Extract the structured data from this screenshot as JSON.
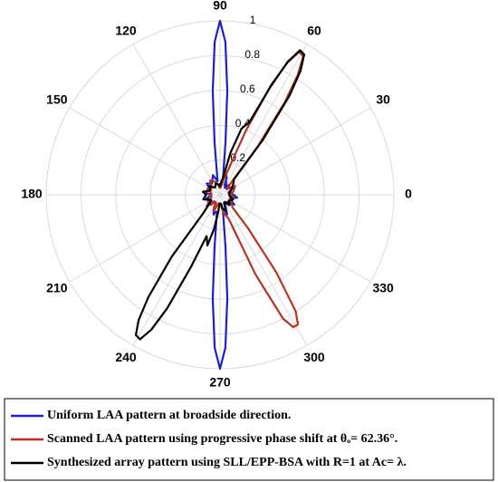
{
  "chart_data": {
    "type": "polar",
    "theta": [
      0,
      15,
      30,
      40,
      48,
      52,
      55,
      57,
      59,
      61,
      63,
      65,
      68,
      72,
      76,
      80,
      84,
      86,
      88,
      90,
      92,
      94,
      96,
      100,
      110,
      125,
      140,
      155,
      170,
      180,
      195,
      210,
      220,
      228,
      232,
      235,
      237,
      239,
      241,
      243,
      245,
      248,
      252,
      256,
      260,
      264,
      266,
      268,
      270,
      272,
      274,
      276,
      280,
      290,
      294,
      297,
      299,
      301,
      303,
      306,
      310,
      315,
      325,
      340,
      350,
      360
    ],
    "series": [
      {
        "name": "Uniform LAA pattern at broadside direction.",
        "color": "#1f1fc8",
        "values": [
          0.08,
          0.05,
          0.1,
          0.06,
          0.08,
          0.05,
          0.06,
          0.05,
          0.07,
          0.06,
          0.08,
          0.06,
          0.1,
          0.12,
          0.1,
          0.1,
          0.3,
          0.6,
          0.88,
          1,
          0.88,
          0.6,
          0.3,
          0.08,
          0.12,
          0.08,
          0.1,
          0.06,
          0.1,
          0.05,
          0.08,
          0.06,
          0.1,
          0.05,
          0.06,
          0.05,
          0.06,
          0.05,
          0.06,
          0.05,
          0.08,
          0.1,
          0.12,
          0.1,
          0.1,
          0.3,
          0.6,
          0.88,
          1,
          0.88,
          0.6,
          0.3,
          0.1,
          0.12,
          0.08,
          0.06,
          0.05,
          0.06,
          0.05,
          0.06,
          0.08,
          0.06,
          0.1,
          0.06,
          0.1,
          0.08
        ]
      },
      {
        "name": "Scanned LAA pattern using progressive phase shift at θₒ= 62.36°.",
        "color": "#b8321f",
        "values": [
          0.06,
          0.08,
          0.1,
          0.05,
          0.1,
          0.35,
          0.65,
          0.82,
          0.93,
          0.94,
          0.85,
          0.7,
          0.4,
          0.15,
          0.1,
          0.06,
          0.05,
          0.04,
          0.05,
          0.06,
          0.05,
          0.04,
          0.05,
          0.06,
          0.08,
          0.1,
          0.06,
          0.08,
          0.05,
          0.06,
          0.05,
          0.08,
          0.06,
          0.08,
          0.05,
          0.06,
          0.05,
          0.06,
          0.05,
          0.06,
          0.08,
          0.1,
          0.08,
          0.06,
          0.05,
          0.06,
          0.05,
          0.06,
          0.05,
          0.06,
          0.05,
          0.06,
          0.1,
          0.15,
          0.5,
          0.8,
          0.87,
          0.87,
          0.8,
          0.55,
          0.25,
          0.1,
          0.08,
          0.06,
          0.08,
          0.06
        ]
      },
      {
        "name": "Synthesized array pattern using SLL/EPP-BSA with R=1 at Ac= λ.",
        "color": "#000000",
        "values": [
          0.05,
          0.06,
          0.08,
          0.1,
          0.12,
          0.4,
          0.7,
          0.85,
          0.94,
          0.95,
          0.86,
          0.68,
          0.45,
          0.4,
          0.25,
          0.1,
          0.08,
          0.06,
          0.05,
          0.06,
          0.05,
          0.06,
          0.05,
          0.06,
          0.07,
          0.05,
          0.08,
          0.06,
          0.1,
          0.08,
          0.1,
          0.06,
          0.08,
          0.15,
          0.45,
          0.72,
          0.86,
          0.94,
          0.95,
          0.87,
          0.72,
          0.45,
          0.25,
          0.3,
          0.2,
          0.1,
          0.06,
          0.05,
          0.06,
          0.05,
          0.06,
          0.05,
          0.08,
          0.1,
          0.06,
          0.05,
          0.06,
          0.05,
          0.06,
          0.05,
          0.06,
          0.08,
          0.06,
          0.08,
          0.06,
          0.05
        ]
      }
    ],
    "rlim": [
      0,
      1
    ],
    "rticks": [
      0.2,
      0.4,
      0.6,
      0.8,
      1
    ],
    "thetaticks": [
      0,
      30,
      60,
      90,
      120,
      150,
      180,
      210,
      240,
      270,
      300,
      330
    ],
    "grid": true,
    "legend": "bottom"
  }
}
